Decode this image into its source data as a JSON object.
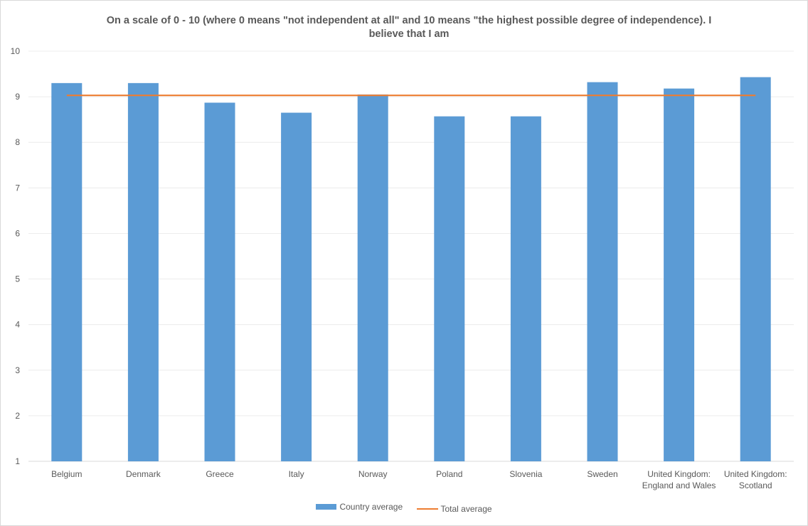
{
  "chart_data": {
    "type": "bar",
    "title": "On a scale of 0 - 10 (where 0 means \"not independent at all\" and 10 means \"the highest possible degree of independence). I believe that I am",
    "categories": [
      [
        "Belgium"
      ],
      [
        "Denmark"
      ],
      [
        "Greece"
      ],
      [
        "Italy"
      ],
      [
        "Norway"
      ],
      [
        "Poland"
      ],
      [
        "Slovenia"
      ],
      [
        "Sweden"
      ],
      [
        "United Kingdom:",
        "England and Wales"
      ],
      [
        "United Kingdom:",
        "Scotland"
      ]
    ],
    "series": [
      {
        "name": "Country average",
        "type": "bar",
        "color": "#5b9bd5",
        "values": [
          9.3,
          9.3,
          8.87,
          8.65,
          9.05,
          8.57,
          8.57,
          9.32,
          9.18,
          9.43
        ]
      },
      {
        "name": "Total average",
        "type": "line",
        "color": "#ed7d31",
        "values": [
          9.03,
          9.03,
          9.03,
          9.03,
          9.03,
          9.03,
          9.03,
          9.03,
          9.03,
          9.03
        ]
      }
    ],
    "ylim": [
      1,
      10
    ],
    "yticks": [
      1,
      2,
      3,
      4,
      5,
      6,
      7,
      8,
      9,
      10
    ],
    "grid": true,
    "legend_position": "bottom",
    "xlabel": "",
    "ylabel": ""
  }
}
